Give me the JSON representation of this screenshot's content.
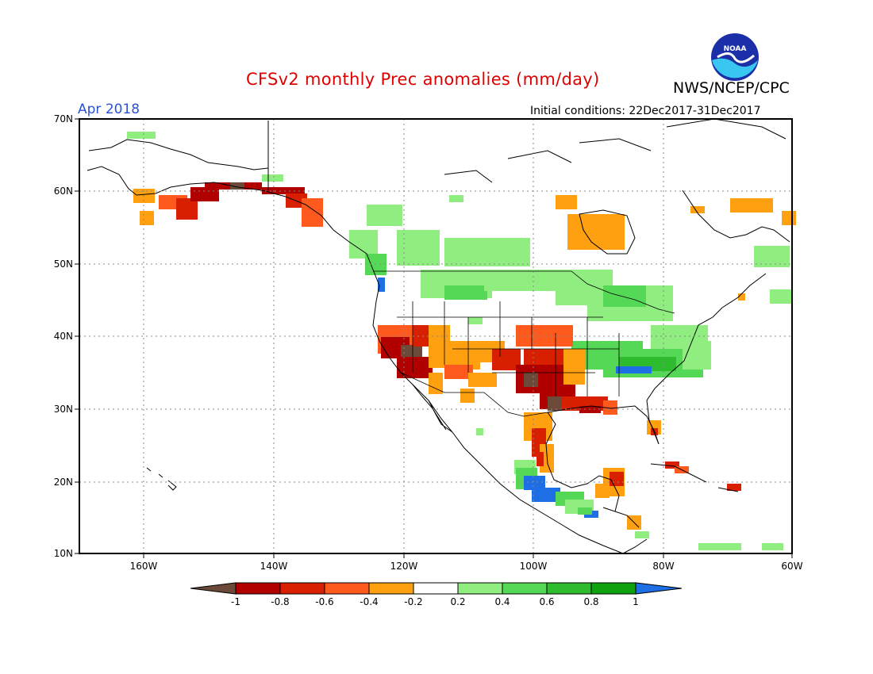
{
  "header": {
    "title": "CFSv2 monthly Prec anomalies (mm/day)",
    "agency": "NWS/NCEP/CPC",
    "period": "Apr 2018",
    "initial_conditions": "Initial conditions: 22Dec2017-31Dec2017",
    "logo_text": "NOAA"
  },
  "map": {
    "lat_labels": [
      "70N",
      "60N",
      "50N",
      "40N",
      "30N",
      "20N",
      "10N"
    ],
    "lon_labels": [
      "160W",
      "140W",
      "120W",
      "100W",
      "80W",
      "60W"
    ]
  },
  "colorbar": {
    "tick_labels": [
      "-1",
      "-0.8",
      "-0.6",
      "-0.4",
      "-0.2",
      "0.2",
      "0.4",
      "0.6",
      "0.8",
      "1"
    ],
    "colors": [
      "#6b4a3a",
      "#b00000",
      "#d82000",
      "#ff5a1e",
      "#ffa010",
      "#ffffff",
      "#90ee80",
      "#55d855",
      "#2ebb2e",
      "#0ea30e",
      "#1e6ee6"
    ]
  },
  "colors": {
    "brown": "#6b4a3a",
    "darkred": "#b00000",
    "red": "#d82000",
    "orangered": "#ff5a1e",
    "orange": "#ffa010",
    "lightgreen": "#90ee80",
    "green": "#55d855",
    "midgreen": "#2ebb2e",
    "darkgreen": "#0ea30e",
    "blue": "#1e6ee6"
  }
}
